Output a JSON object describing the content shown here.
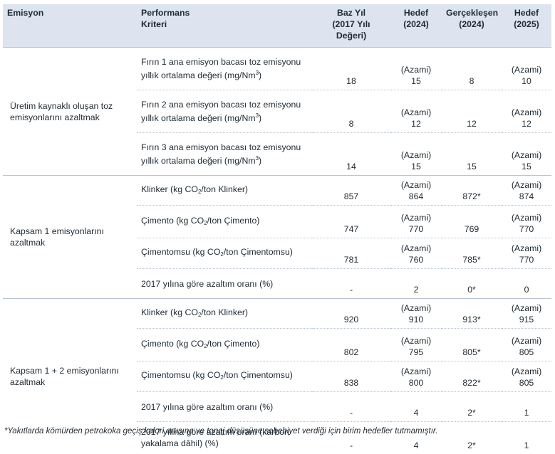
{
  "headers": {
    "emission": "Emisyon",
    "criteria_line1": "Performans",
    "criteria_line2": "Kriteri",
    "base_line1": "Baz Yıl",
    "base_line2": "(2017 Yılı Değeri)",
    "target2024_line1": "Hedef",
    "target2024_line2": "(2024)",
    "actual2024_line1": "Gerçekleşen",
    "actual2024_line2": "(2024)",
    "target2025_line1": "Hedef",
    "target2025_line2": "(2025)"
  },
  "groups": [
    {
      "label": "Üretim kaynaklı oluşan toz emisyonlarını azaltmak",
      "rows": [
        {
          "criteria_pre": "Fırın 1 ana emisyon bacası toz emisyonu yıllık ortalama değeri (mg/Nm",
          "criteria_sup": "3",
          "criteria_post": ")",
          "base": "18",
          "t2024_note": "(Azami)",
          "t2024": "15",
          "actual": "8",
          "t2025_note": "(Azami)",
          "t2025": "10"
        },
        {
          "criteria_pre": "Fırın 2 ana emisyon bacası toz emisyonu yıllık ortalama değeri (mg/Nm",
          "criteria_sup": "3",
          "criteria_post": ")",
          "base": "8",
          "t2024_note": "(Azami)",
          "t2024": "12",
          "actual": "12",
          "t2025_note": "(Azami)",
          "t2025": "12"
        },
        {
          "criteria_pre": "Fırın 3 ana emisyon bacası toz emisyonu yıllık ortalama değeri (mg/Nm",
          "criteria_sup": "3",
          "criteria_post": ")",
          "base": "14",
          "t2024_note": "(Azami)",
          "t2024": "15",
          "actual": "15",
          "t2025_note": "(Azami)",
          "t2025": "15"
        }
      ]
    },
    {
      "label": "Kapsam 1 emisyonlarını azaltmak",
      "rows": [
        {
          "criteria_pre": "Klinker (kg CO",
          "criteria_sub": "2",
          "criteria_post": "/ton Klinker)",
          "base": "857",
          "t2024_note": "(Azami)",
          "t2024": "864",
          "actual": "872*",
          "t2025_note": "(Azami)",
          "t2025": "874"
        },
        {
          "criteria_pre": "Çimento (kg CO",
          "criteria_sub": "2",
          "criteria_post": "/ton Çimento)",
          "base": "747",
          "t2024_note": "(Azami)",
          "t2024": "770",
          "actual": "769",
          "t2025_note": "(Azami)",
          "t2025": "770"
        },
        {
          "criteria_pre": "Çimentomsu (kg CO",
          "criteria_sub": "2",
          "criteria_post": "/ton Çimentomsu)",
          "base": "781",
          "t2024_note": "(Azami)",
          "t2024": "760",
          "actual": "785*",
          "t2025_note": "(Azami)",
          "t2025": "770"
        },
        {
          "criteria_pre": "2017 yılına göre azaltım oranı (%)",
          "base": "-",
          "t2024_note": "",
          "t2024": "2",
          "actual": "0*",
          "t2025_note": "",
          "t2025": "0"
        }
      ]
    },
    {
      "label": "Kapsam 1 + 2 emisyonlarını azaltmak",
      "rows": [
        {
          "criteria_pre": "Klinker (kg CO",
          "criteria_sub": "2",
          "criteria_post": "/ton Klinker)",
          "base": "920",
          "t2024_note": "(Azami)",
          "t2024": "910",
          "actual": "913*",
          "t2025_note": "(Azami)",
          "t2025": "915"
        },
        {
          "criteria_pre": "Çimento (kg CO",
          "criteria_sub": "2",
          "criteria_post": "/ton Çimento)",
          "base": "802",
          "t2024_note": "(Azami)",
          "t2024": "795",
          "actual": "805*",
          "t2025_note": "(Azami)",
          "t2025": "805"
        },
        {
          "criteria_pre": "Çimentomsu (kg CO",
          "criteria_sub": "2",
          "criteria_post": "/ton Çimentomsu)",
          "base": "838",
          "t2024_note": "(Azami)",
          "t2024": "800",
          "actual": "822*",
          "t2025_note": "(Azami)",
          "t2025": "805"
        },
        {
          "criteria_pre": "2017 yılına göre azaltım oranı (%)",
          "base": "-",
          "t2024_note": "",
          "t2024": "4",
          "actual": "2*",
          "t2025_note": "",
          "t2025": "1"
        },
        {
          "criteria_pre": "2017 yılına göre azaltım oranı (karbon yakalama dâhil) (%)",
          "base": "-",
          "t2024_note": "",
          "t2024": "4",
          "actual": "2*",
          "t2025_note": "",
          "t2025": "1"
        }
      ]
    }
  ],
  "footnote": "*Yakıtlarda kömürden petrokoka geçiş kalori artışına ve tonaj düşüşüne sebebiyet verdiği için birim hedefler tutmamıştır.",
  "colors": {
    "header_bg": "#dde3ef",
    "text": "#1f2a33",
    "rule": "#b8c3d1"
  }
}
